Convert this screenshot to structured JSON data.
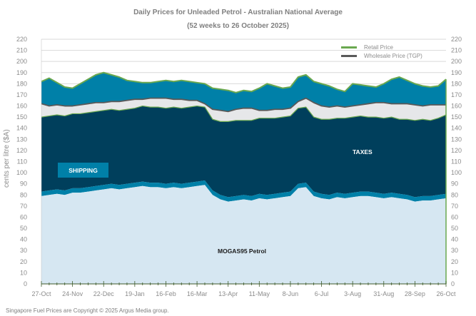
{
  "chart_data": {
    "type": "area",
    "title": "Daily Prices for Unleaded Petrol - Australian National Average",
    "subtitle": "(52 weeks to 26 October 2025)",
    "ylabel": "cents per litre ($A)",
    "xlabel": "",
    "ylim": [
      0,
      220
    ],
    "yticks": [
      0,
      10,
      20,
      30,
      40,
      50,
      60,
      70,
      80,
      90,
      100,
      110,
      120,
      130,
      140,
      150,
      160,
      170,
      180,
      190,
      200,
      210,
      220
    ],
    "xtick_labels": [
      "27-Oct",
      "24-Nov",
      "22-Dec",
      "19-Jan",
      "16-Feb",
      "16-Mar",
      "13-Apr",
      "11-May",
      "8-Jun",
      "6-Jul",
      "3-Aug",
      "31-Aug",
      "28-Sep",
      "26-Oct"
    ],
    "x_weeks": 52,
    "grid": "horizontal",
    "legend_position": "top-right",
    "legend": [
      {
        "label": "Retail Price",
        "color": "#6aa84f"
      },
      {
        "label": "Wholesale Price (TGP)",
        "color": "#595959"
      }
    ],
    "area_labels": {
      "mogas": "MOGAS95  Petrol",
      "shipping": "SHIPPING",
      "taxes": "TAXES"
    },
    "colors": {
      "mogas": "#d6e7f2",
      "shipping": "#0080a8",
      "taxes": "#003f5c",
      "margin_band": "#e6e7e9",
      "retail_fill": "#0080a8",
      "retail_line": "#6aa84f",
      "tgp_line": "#595959"
    },
    "series": [
      {
        "name": "MOGAS95 Petrol",
        "values": [
          79,
          80,
          81,
          80,
          82,
          82,
          83,
          84,
          85,
          86,
          85,
          86,
          87,
          88,
          87,
          87,
          86,
          87,
          86,
          87,
          88,
          89,
          80,
          76,
          74,
          75,
          76,
          75,
          77,
          76,
          77,
          78,
          79,
          86,
          87,
          79,
          77,
          76,
          78,
          77,
          78,
          79,
          79,
          78,
          77,
          78,
          77,
          76,
          74,
          75,
          75,
          76,
          77
        ]
      },
      {
        "name": "Shipping",
        "values": [
          4,
          4,
          4,
          4,
          4,
          4,
          4,
          4,
          4,
          4,
          4,
          4,
          4,
          4,
          4,
          4,
          4,
          4,
          4,
          4,
          4,
          4,
          4,
          4,
          4,
          4,
          4,
          4,
          4,
          4,
          4,
          4,
          4,
          4,
          4,
          4,
          4,
          4,
          4,
          4,
          4,
          4,
          4,
          4,
          4,
          4,
          4,
          4,
          4,
          4,
          4,
          4,
          4
        ]
      },
      {
        "name": "Taxes",
        "values": [
          67,
          67,
          67,
          67,
          67,
          67,
          67,
          67,
          67,
          67,
          67,
          67,
          67,
          68,
          68,
          68,
          68,
          68,
          68,
          68,
          68,
          66,
          64,
          66,
          68,
          68,
          67,
          68,
          68,
          69,
          68,
          68,
          68,
          68,
          68,
          67,
          67,
          68,
          67,
          68,
          68,
          68,
          67,
          68,
          68,
          68,
          67,
          68,
          69,
          69,
          68,
          69,
          71
        ]
      },
      {
        "name": "Wholesale Price (TGP)",
        "values": [
          162,
          160,
          161,
          160,
          160,
          161,
          162,
          163,
          163,
          164,
          164,
          165,
          166,
          166,
          167,
          167,
          167,
          166,
          166,
          165,
          165,
          162,
          157,
          156,
          155,
          157,
          158,
          158,
          156,
          156,
          157,
          157,
          158,
          164,
          167,
          163,
          160,
          159,
          160,
          159,
          160,
          161,
          162,
          163,
          163,
          162,
          162,
          162,
          161,
          160,
          161,
          161,
          161
        ]
      },
      {
        "name": "Retail Price",
        "values": [
          182,
          185,
          181,
          177,
          176,
          180,
          184,
          188,
          190,
          188,
          186,
          183,
          182,
          181,
          181,
          182,
          183,
          182,
          183,
          182,
          181,
          180,
          176,
          175,
          174,
          172,
          174,
          173,
          176,
          180,
          178,
          176,
          177,
          186,
          188,
          182,
          180,
          178,
          175,
          173,
          180,
          179,
          178,
          177,
          180,
          184,
          186,
          183,
          180,
          178,
          177,
          178,
          184
        ]
      }
    ]
  },
  "footer": {
    "copyright": "Singapore Fuel Prices are Copyright © 2025 Argus Media group."
  }
}
